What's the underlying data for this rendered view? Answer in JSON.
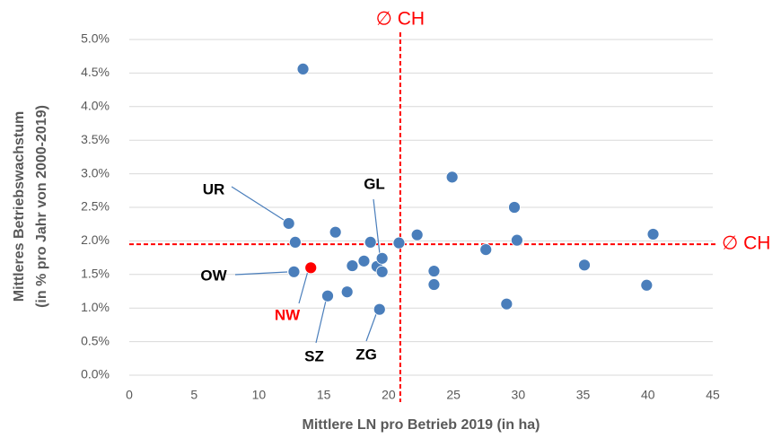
{
  "chart_data": {
    "type": "scatter",
    "xlabel": "Mittlere LN pro Betrieb 2019 (in ha)",
    "ylabel": [
      "Mittleres Betriebswachstum",
      "(in % pro Jahr von 2000-2019)"
    ],
    "x": [
      13.4,
      12.3,
      12.8,
      12.7,
      14.0,
      15.9,
      15.3,
      16.8,
      17.2,
      18.1,
      18.6,
      19.1,
      19.5,
      19.5,
      19.3,
      20.8,
      22.2,
      23.5,
      23.5,
      24.9,
      27.5,
      29.1,
      29.7,
      29.9,
      35.1,
      39.9,
      40.4
    ],
    "values": [
      4.56,
      2.26,
      1.98,
      1.54,
      1.6,
      2.13,
      1.18,
      1.24,
      1.63,
      1.7,
      1.98,
      1.62,
      1.74,
      1.54,
      0.98,
      1.97,
      2.09,
      1.55,
      1.35,
      2.95,
      1.87,
      1.06,
      2.5,
      2.01,
      1.64,
      1.34,
      2.1
    ],
    "point_colors": [
      "#4a7ebb",
      "#4a7ebb",
      "#4a7ebb",
      "#4a7ebb",
      "#ff0000",
      "#4a7ebb",
      "#4a7ebb",
      "#4a7ebb",
      "#4a7ebb",
      "#4a7ebb",
      "#4a7ebb",
      "#4a7ebb",
      "#4a7ebb",
      "#4a7ebb",
      "#4a7ebb",
      "#4a7ebb",
      "#4a7ebb",
      "#4a7ebb",
      "#4a7ebb",
      "#4a7ebb",
      "#4a7ebb",
      "#4a7ebb",
      "#4a7ebb",
      "#4a7ebb",
      "#4a7ebb",
      "#4a7ebb",
      "#4a7ebb"
    ],
    "xlim": [
      0,
      45
    ],
    "xticks": [
      0,
      5,
      10,
      15,
      20,
      25,
      30,
      35,
      40,
      45
    ],
    "ylim": [
      0,
      5
    ],
    "yticks": [
      {
        "value": 0,
        "label": "0.0%"
      },
      {
        "value": 0.5,
        "label": "0.5%"
      },
      {
        "value": 1,
        "label": "1.0%"
      },
      {
        "value": 1.5,
        "label": "1.5%"
      },
      {
        "value": 2,
        "label": "2.0%"
      },
      {
        "value": 2.5,
        "label": "2.5%"
      },
      {
        "value": 3,
        "label": "3.0%"
      },
      {
        "value": 3.5,
        "label": "3.5%"
      },
      {
        "value": 4,
        "label": "4.0%"
      },
      {
        "value": 4.5,
        "label": "4.5%"
      },
      {
        "value": 5,
        "label": "5.0%"
      }
    ],
    "grid": true,
    "vline": {
      "value": 20.9,
      "label": "∅ CH",
      "color": "#ff0000"
    },
    "hline": {
      "value": 1.95,
      "label": "∅ CH",
      "color": "#ff0000"
    },
    "annotations": [
      {
        "text": "UR",
        "color": "#000000"
      },
      {
        "text": "GL",
        "color": "#000000"
      },
      {
        "text": "OW",
        "color": "#000000"
      },
      {
        "text": "NW",
        "color": "#ff0000"
      },
      {
        "text": "SZ",
        "color": "#000000"
      },
      {
        "text": "ZG",
        "color": "#000000"
      }
    ]
  }
}
